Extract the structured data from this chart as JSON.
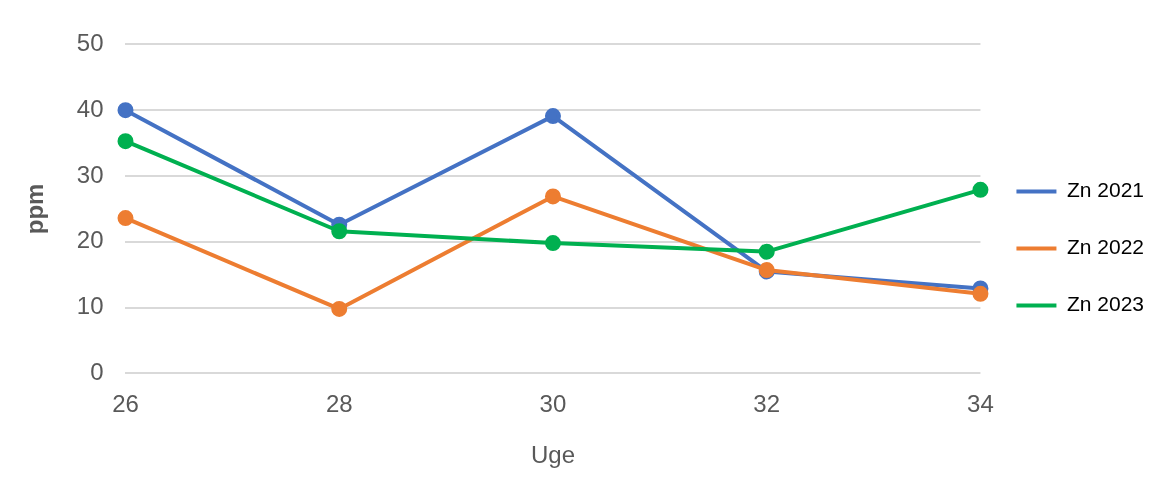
{
  "chart_data": {
    "type": "line",
    "xlabel": "Uge",
    "ylabel": "ppm",
    "categories": [
      "26",
      "28",
      "30",
      "32",
      "34"
    ],
    "series": [
      {
        "name": "Zn 2021",
        "color": "#4472c4",
        "values": [
          40,
          22.6,
          39.1,
          15.5,
          12.9
        ]
      },
      {
        "name": "Zn 2022",
        "color": "#ed7d31",
        "values": [
          23.6,
          9.8,
          26.9,
          15.7,
          12.1
        ]
      },
      {
        "name": "Zn 2023",
        "color": "#00b050",
        "values": [
          35.3,
          21.6,
          19.8,
          18.5,
          27.9
        ]
      }
    ],
    "ylim": [
      0,
      50
    ],
    "yticks": [
      0,
      10,
      20,
      30,
      40,
      50
    ],
    "grid": "y",
    "legend": "right",
    "marker": "circle",
    "line_style": "solid"
  }
}
